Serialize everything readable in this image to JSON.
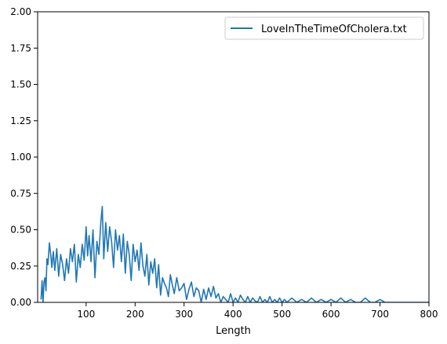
{
  "chart_data": {
    "type": "line",
    "title": "",
    "xlabel": "Length",
    "ylabel": "",
    "xlim": [
      1,
      800
    ],
    "ylim": [
      0,
      2.0
    ],
    "xticks": [
      100,
      200,
      300,
      400,
      500,
      600,
      700,
      800
    ],
    "xtick_labels": [
      "100",
      "200",
      "300",
      "400",
      "500",
      "600",
      "700",
      "800"
    ],
    "yticks": [
      0,
      0.25,
      0.5,
      0.75,
      1.0,
      1.25,
      1.5,
      1.75,
      2.0
    ],
    "ytick_labels": [
      "0.00",
      "0.25",
      "0.50",
      "0.75",
      "1.00",
      "1.25",
      "1.50",
      "1.75",
      "2.00"
    ],
    "grid": false,
    "legend": "top-right",
    "line_color": "#1f77b4",
    "series": [
      {
        "name": "LoveInTheTimeOfCholera.txt",
        "x": [
          8,
          10,
          12,
          14,
          16,
          18,
          20,
          22,
          25,
          28,
          30,
          33,
          36,
          40,
          44,
          48,
          52,
          56,
          60,
          64,
          68,
          72,
          76,
          80,
          84,
          88,
          92,
          96,
          100,
          103,
          106,
          110,
          114,
          118,
          122,
          126,
          130,
          133,
          136,
          140,
          144,
          148,
          152,
          156,
          160,
          164,
          168,
          172,
          176,
          180,
          184,
          188,
          192,
          196,
          200,
          204,
          208,
          212,
          216,
          220,
          224,
          228,
          232,
          236,
          240,
          244,
          248,
          252,
          256,
          260,
          264,
          268,
          272,
          276,
          280,
          285,
          290,
          295,
          300,
          305,
          310,
          315,
          320,
          325,
          330,
          335,
          340,
          345,
          350,
          355,
          360,
          365,
          370,
          375,
          380,
          385,
          390,
          395,
          400,
          405,
          410,
          415,
          420,
          425,
          430,
          435,
          440,
          445,
          450,
          455,
          460,
          465,
          470,
          475,
          480,
          485,
          490,
          495,
          500,
          505,
          510,
          520,
          530,
          540,
          550,
          560,
          570,
          580,
          590,
          600,
          610,
          620,
          630,
          640,
          650,
          660,
          670,
          680,
          690,
          700,
          710,
          720,
          740,
          760,
          780,
          800
        ],
        "y": [
          0.02,
          0.15,
          0.0,
          0.14,
          0.17,
          0.08,
          0.3,
          0.26,
          0.41,
          0.32,
          0.24,
          0.35,
          0.22,
          0.37,
          0.18,
          0.33,
          0.26,
          0.15,
          0.3,
          0.2,
          0.37,
          0.28,
          0.4,
          0.14,
          0.33,
          0.24,
          0.4,
          0.29,
          0.52,
          0.32,
          0.46,
          0.28,
          0.5,
          0.17,
          0.42,
          0.33,
          0.55,
          0.66,
          0.3,
          0.55,
          0.35,
          0.52,
          0.42,
          0.24,
          0.5,
          0.36,
          0.46,
          0.28,
          0.47,
          0.2,
          0.42,
          0.33,
          0.15,
          0.4,
          0.28,
          0.36,
          0.22,
          0.41,
          0.25,
          0.18,
          0.33,
          0.12,
          0.28,
          0.2,
          0.3,
          0.1,
          0.26,
          0.05,
          0.17,
          0.13,
          0.1,
          0.04,
          0.19,
          0.12,
          0.06,
          0.17,
          0.08,
          0.1,
          0.13,
          0.02,
          0.09,
          0.14,
          0.04,
          0.1,
          0.08,
          0.0,
          0.09,
          0.02,
          0.1,
          0.04,
          0.11,
          0.03,
          0.06,
          0.0,
          0.04,
          0.02,
          0.0,
          0.06,
          0.0,
          0.03,
          0.0,
          0.05,
          0.02,
          0.0,
          0.04,
          0.0,
          0.03,
          0.01,
          0.0,
          0.04,
          0.0,
          0.02,
          0.0,
          0.04,
          0.0,
          0.02,
          0.0,
          0.03,
          0.0,
          0.02,
          0.0,
          0.03,
          0.0,
          0.02,
          0.0,
          0.03,
          0.0,
          0.02,
          0.0,
          0.02,
          0.0,
          0.03,
          0.0,
          0.02,
          0.0,
          0.0,
          0.03,
          0.0,
          0.0,
          0.02,
          0.0,
          0.0,
          0.0,
          0.0,
          0.0,
          0.0
        ]
      }
    ]
  }
}
